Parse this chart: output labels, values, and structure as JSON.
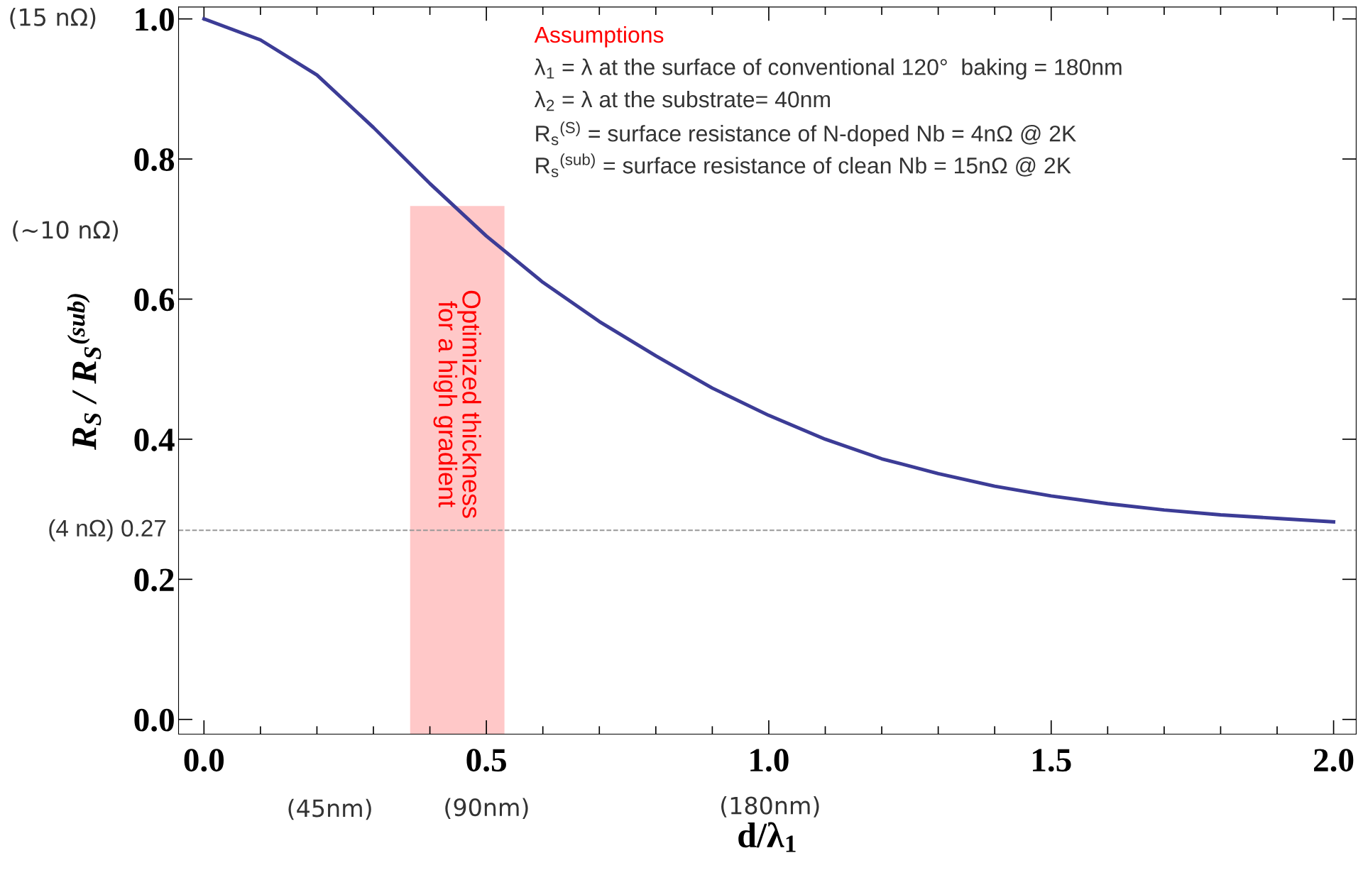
{
  "chart_data": {
    "type": "line",
    "xlabel": "d/λ$_{1}$",
    "ylabel": "R$_{S}$ / R$_{S}$$^{(sub)}$",
    "x": [
      0,
      0.1,
      0.2,
      0.3,
      0.4,
      0.5,
      0.6,
      0.7,
      0.8,
      0.9,
      1.0,
      1.1,
      1.2,
      1.3,
      1.4,
      1.5,
      1.6,
      1.7,
      1.8,
      1.9,
      2.0
    ],
    "series": [
      {
        "color": "#3c3c96",
        "values": [
          1.0,
          0.97,
          0.92,
          0.845,
          0.765,
          0.69,
          0.624,
          0.568,
          0.519,
          0.473,
          0.434,
          0.4,
          0.372,
          0.351,
          0.333,
          0.319,
          0.308,
          0.299,
          0.292,
          0.287,
          0.282
        ]
      }
    ],
    "xlim": [
      -0.045,
      2.04
    ],
    "ylim": [
      -0.021,
      1.017
    ],
    "xticks": [
      {
        "value": 0,
        "label": "0.0"
      },
      {
        "value": 0.5,
        "label": "0.5"
      },
      {
        "value": 1.0,
        "label": "1.0"
      },
      {
        "value": 1.5,
        "label": "1.5"
      },
      {
        "value": 2.0,
        "label": "2.0"
      }
    ],
    "yticks": [
      {
        "value": 0,
        "label": "0.0"
      },
      {
        "value": 0.2,
        "label": "0.2"
      },
      {
        "value": 0.4,
        "label": "0.4"
      },
      {
        "value": 0.6,
        "label": "0.6"
      },
      {
        "value": 0.8,
        "label": "0.8"
      },
      {
        "value": 1.0,
        "label": "1.0"
      }
    ],
    "ref_lines": [
      {
        "axis": "y",
        "value": 0.27,
        "color": "#999999",
        "line_style": "dashed",
        "label": "(4 nΩ) 0.27"
      }
    ],
    "bands": [
      {
        "axis": "x",
        "from": 0.365,
        "to": 0.532,
        "label": "Optimized thickness\nfor a high gradient",
        "color": "#ffc8c8"
      }
    ],
    "annotations": [
      "(15 nΩ)",
      "(∼10 nΩ)",
      "(45nm)",
      "(90nm)",
      "(180nm)",
      "Assumptions",
      "λ$_{1}$ = λ at the surface of conventional 120°  baking = 180nm",
      "λ$_{2}$ = λ at the substrate= 40nm",
      "R$_{s}$$^{(S)}$ = surface resistance of N-doped Nb = 4nΩ @ 2K",
      "R$_{s}$$^{(sub)}$ = surface resistance of clean Nb = 15nΩ @ 2K"
    ],
    "grid": false,
    "legend": false,
    "marker": "none",
    "line_style": "solid"
  }
}
